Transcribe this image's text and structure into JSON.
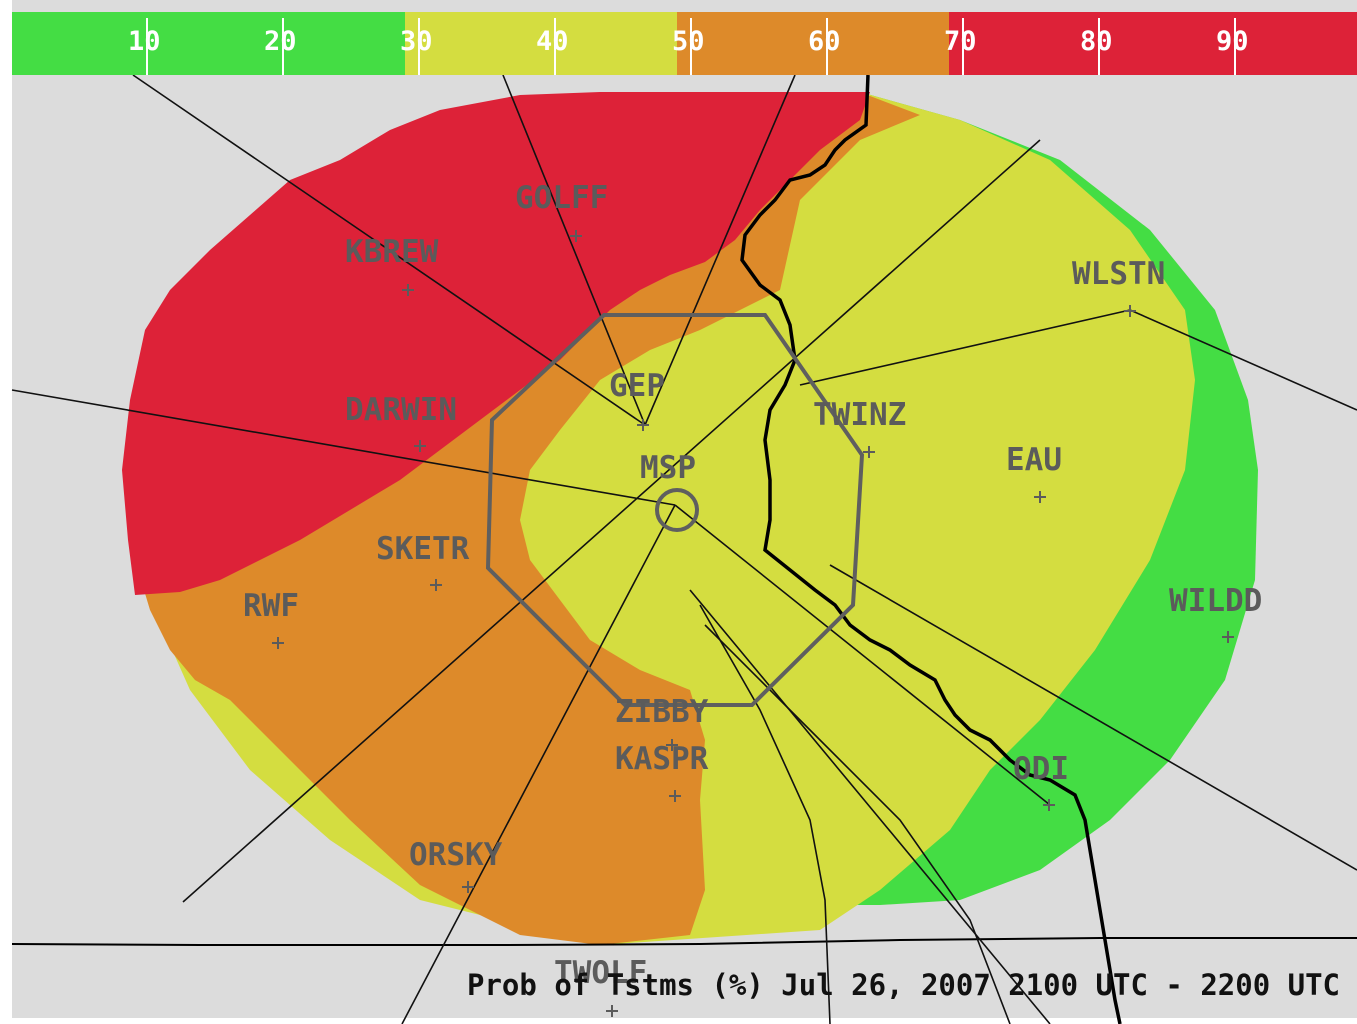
{
  "legend": {
    "bands": [
      {
        "name": "legend-band-10-30",
        "color": "#44dd44"
      },
      {
        "name": "legend-band-30-50",
        "color": "#d4dd40"
      },
      {
        "name": "legend-band-50-70",
        "color": "#dd8a2a"
      },
      {
        "name": "legend-band-70-100",
        "color": "#dd2238"
      }
    ],
    "ticks": [
      "10",
      "20",
      "30",
      "40",
      "50",
      "60",
      "70",
      "80",
      "90"
    ]
  },
  "colors": {
    "background": "#dcdcdc",
    "prob_10_30": "#44dd44",
    "prob_30_50": "#d4dd40",
    "prob_50_70": "#dd8a2a",
    "prob_70_100": "#dd2238",
    "terminal_area": "#5f5f5f",
    "route_lines": "#111111",
    "state_border": "#000000"
  },
  "fixes": {
    "golff": "GOLFF",
    "kbrew": "KBREW",
    "wlstn": "WLSTN",
    "gep": "GEP",
    "darwin": "DARWIN",
    "twinz": "TWINZ",
    "eau": "EAU",
    "msp": "MSP",
    "sketr": "SKETR",
    "rwf": "RWF",
    "wildd": "WILDD",
    "zibby": "ZIBBY",
    "kaspr": "KASPR",
    "odi": "ODI",
    "orsky": "ORSKY",
    "twolf": "TWOLF"
  },
  "caption": "Prob of Tstms (%) Jul 26, 2007 2100 UTC - 2200 UTC"
}
